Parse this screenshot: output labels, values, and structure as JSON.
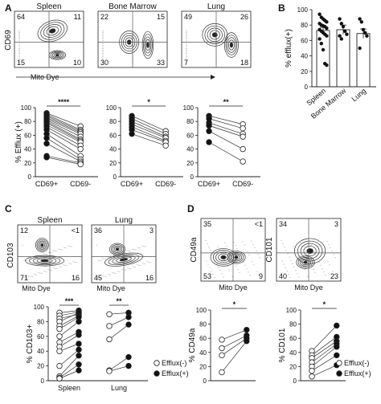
{
  "chart_data": [
    {
      "panel": "A",
      "type": "contour",
      "flow": [
        {
          "title": "Spleen",
          "quadrants": {
            "tl": "64",
            "tr": "11",
            "bl": "15",
            "br": "10"
          }
        },
        {
          "title": "Bone Marrow",
          "quadrants": {
            "tl": "22",
            "tr": "15",
            "bl": "30",
            "br": "33"
          }
        },
        {
          "title": "Lung",
          "quadrants": {
            "tl": "49",
            "tr": "26",
            "bl": "7",
            "br": "18"
          }
        }
      ],
      "ylabel": "CD69",
      "xlabel": "Mito Dye"
    },
    {
      "panel": "A",
      "type": "paired-line",
      "ylabel": "% Efflux (+)",
      "ylim": [
        0,
        100
      ],
      "yticks": [
        0,
        20,
        40,
        60,
        80,
        100
      ],
      "plots": [
        {
          "categories": [
            "CD69+",
            "CD69-"
          ],
          "sig": "****",
          "pairs": [
            [
              92,
              73
            ],
            [
              90,
              68
            ],
            [
              88,
              66
            ],
            [
              86,
              64
            ],
            [
              84,
              62
            ],
            [
              82,
              58
            ],
            [
              80,
              54
            ],
            [
              78,
              52
            ],
            [
              75,
              50
            ],
            [
              72,
              45
            ],
            [
              68,
              40
            ],
            [
              62,
              30
            ],
            [
              56,
              25
            ],
            [
              48,
              22
            ],
            [
              30,
              20
            ],
            [
              28,
              18
            ]
          ]
        },
        {
          "categories": [
            "CD69+",
            "CD69-"
          ],
          "sig": "*",
          "pairs": [
            [
              88,
              66
            ],
            [
              84,
              62
            ],
            [
              80,
              58
            ],
            [
              76,
              56
            ],
            [
              72,
              52
            ],
            [
              68,
              50
            ],
            [
              62,
              45
            ]
          ]
        },
        {
          "categories": [
            "CD69+",
            "CD69-"
          ],
          "sig": "**",
          "pairs": [
            [
              88,
              76
            ],
            [
              84,
              70
            ],
            [
              78,
              62
            ],
            [
              74,
              58
            ],
            [
              66,
              40
            ],
            [
              50,
              22
            ]
          ]
        }
      ]
    },
    {
      "panel": "B",
      "type": "bar",
      "ylabel": "% efflux(+)",
      "ylim": [
        0,
        100
      ],
      "yticks": [
        0,
        20,
        40,
        60,
        80,
        100
      ],
      "categories": [
        "Spleen",
        "Bone Marrow",
        "Lung"
      ],
      "values": [
        73,
        74,
        69
      ],
      "errors": [
        4,
        6,
        6
      ],
      "points": [
        [
          94,
          90,
          88,
          86,
          84,
          82,
          80,
          79,
          78,
          76,
          74,
          72,
          70,
          68,
          66,
          62,
          56,
          48,
          30,
          28
        ],
        [
          88,
          82,
          78,
          72,
          68,
          66,
          62
        ],
        [
          88,
          84,
          74,
          70,
          66,
          50
        ]
      ]
    },
    {
      "panel": "C",
      "type": "contour",
      "flow": [
        {
          "title": "Spleen",
          "quadrants": {
            "tl": "12",
            "tr": "<1",
            "bl": "71",
            "br": "16"
          }
        },
        {
          "title": "Lung",
          "quadrants": {
            "tl": "36",
            "tr": "3",
            "bl": "45",
            "br": "16"
          }
        }
      ],
      "ylabel": "CD103",
      "xlabel": "Mito Dye"
    },
    {
      "panel": "C",
      "type": "paired-line",
      "ylabel": "% CD103+",
      "ylim": [
        0,
        100
      ],
      "yticks": [
        0,
        20,
        40,
        60,
        80,
        100
      ],
      "categories": [
        "Spleen",
        "Lung"
      ],
      "legend": [
        "Efflux(-)",
        "Efflux(+)"
      ],
      "groups": [
        {
          "sig": "***",
          "pairs": [
            [
              92,
              95
            ],
            [
              88,
              93
            ],
            [
              84,
              90
            ],
            [
              80,
              92
            ],
            [
              74,
              88
            ],
            [
              70,
              86
            ],
            [
              60,
              80
            ],
            [
              52,
              66
            ],
            [
              46,
              62
            ],
            [
              40,
              50
            ],
            [
              20,
              42
            ],
            [
              6,
              34
            ],
            [
              4,
              22
            ],
            [
              3,
              14
            ]
          ]
        },
        {
          "sig": "**",
          "pairs": [
            [
              90,
              92
            ],
            [
              74,
              86
            ],
            [
              56,
              76
            ],
            [
              14,
              32
            ],
            [
              13,
              20
            ]
          ]
        }
      ]
    },
    {
      "panel": "D",
      "type": "contour",
      "flow": [
        {
          "ylabel": "CD49a",
          "quadrants": {
            "tl": "35",
            "tr": "<1",
            "bl": "53",
            "br": "9"
          }
        },
        {
          "ylabel": "CD101",
          "quadrants": {
            "tl": "34",
            "tr": "3",
            "bl": "40",
            "br": "23"
          }
        }
      ],
      "xlabel": "Mito Dye"
    },
    {
      "panel": "D",
      "type": "paired-line",
      "legend": [
        "Efflux(-)",
        "Efflux(+)"
      ],
      "plots": [
        {
          "ylabel": "% CD49a",
          "ylim": [
            0,
            100
          ],
          "yticks": [
            0,
            20,
            40,
            60,
            80,
            100
          ],
          "sig": "*",
          "pairs": [
            [
              58,
              72
            ],
            [
              46,
              64
            ],
            [
              36,
              60
            ],
            [
              12,
              56
            ]
          ]
        },
        {
          "ylabel": "% CD101",
          "ylim": [
            0,
            100
          ],
          "yticks": [
            0,
            20,
            40,
            60,
            80,
            100
          ],
          "sig": "*",
          "pairs": [
            [
              42,
              78
            ],
            [
              36,
              62
            ],
            [
              32,
              56
            ],
            [
              26,
              52
            ],
            [
              20,
              48
            ],
            [
              14,
              36
            ],
            [
              6,
              22
            ]
          ]
        }
      ]
    }
  ],
  "panel_labels": [
    "A",
    "B",
    "C",
    "D"
  ]
}
